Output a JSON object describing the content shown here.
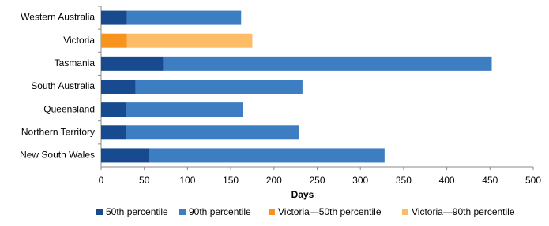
{
  "chart_data": {
    "type": "hbar-stacked",
    "categories": [
      "Western Australia",
      "Victoria",
      "Tasmania",
      "South Australia",
      "Queensland",
      "Northern Territory",
      "New South Wales"
    ],
    "series": [
      {
        "name": "50th percentile",
        "color": "#174a8f",
        "values": [
          30,
          null,
          72,
          40,
          29,
          29,
          55
        ]
      },
      {
        "name": "90th percentile",
        "color": "#3d7dc1",
        "values": [
          132,
          null,
          380,
          193,
          135,
          200,
          273
        ]
      },
      {
        "name": "Victoria—50th percentile",
        "color": "#f7941d",
        "values": [
          null,
          30,
          null,
          null,
          null,
          null,
          null
        ]
      },
      {
        "name": "Victoria—90th percentile",
        "color": "#fcbd66",
        "values": [
          null,
          145,
          null,
          null,
          null,
          null,
          null
        ]
      }
    ],
    "xlabel": "Days",
    "xlim": [
      0,
      500
    ],
    "xticks": [
      0,
      50,
      100,
      150,
      200,
      250,
      300,
      350,
      400,
      450,
      500
    ]
  }
}
